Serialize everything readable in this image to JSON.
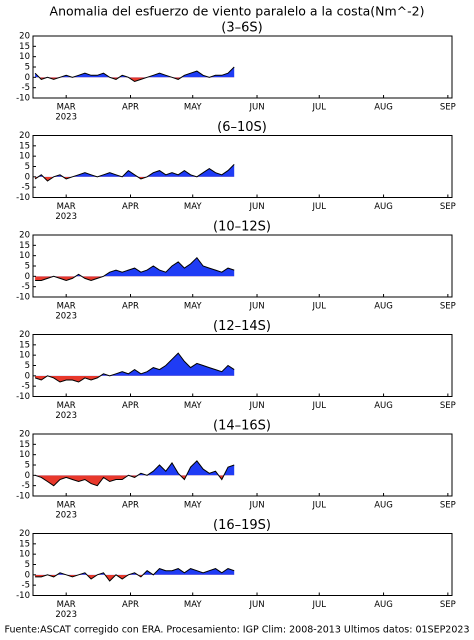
{
  "title": "Anomalia del esfuerzo de viento paralelo a la costa(Nm^-2)",
  "footer": "Fuente:ASCAT corregido con ERA. Procesamiento: IGP Clim: 2008-2013 Ultimos datos: 01SEP2023",
  "chart_data": [
    {
      "type": "area",
      "subtitle": "(3–6S)",
      "x": [
        45,
        48,
        51,
        54,
        57,
        60,
        63,
        66,
        69,
        72,
        75,
        78,
        81,
        84,
        87,
        90,
        93,
        96,
        99,
        102,
        105,
        108,
        111,
        114,
        117,
        120,
        123,
        126,
        129,
        132,
        135,
        138,
        141
      ],
      "values": [
        2,
        -1,
        0,
        -1,
        0,
        1,
        0,
        1,
        2,
        1,
        1,
        2,
        0,
        -1,
        1,
        0,
        -2,
        -1,
        0,
        1,
        2,
        1,
        0,
        -1,
        1,
        2,
        3,
        1,
        0,
        1,
        1,
        2,
        5
      ],
      "xlim": [
        44,
        246
      ],
      "xticks": [
        {
          "value": 60,
          "label": "MAR"
        },
        {
          "value": 91,
          "label": "APR"
        },
        {
          "value": 121,
          "label": "MAY"
        },
        {
          "value": 152,
          "label": "JUN"
        },
        {
          "value": 182,
          "label": "JUL"
        },
        {
          "value": 213,
          "label": "AUG"
        },
        {
          "value": 244,
          "label": "SEP"
        }
      ],
      "year_label": "2023",
      "ylim": [
        -10,
        20
      ],
      "yticks": [
        20,
        15,
        10,
        5,
        0,
        -5,
        -10
      ],
      "pos_color": "#1f3cf5",
      "neg_color": "#e8382b",
      "line_color": "#000000"
    },
    {
      "type": "area",
      "subtitle": "(6–10S)",
      "x": [
        45,
        48,
        51,
        54,
        57,
        60,
        63,
        66,
        69,
        72,
        75,
        78,
        81,
        84,
        87,
        90,
        93,
        96,
        99,
        102,
        105,
        108,
        111,
        114,
        117,
        120,
        123,
        126,
        129,
        132,
        135,
        138,
        141
      ],
      "values": [
        -1,
        1,
        -2,
        0,
        1,
        -1,
        0,
        1,
        2,
        1,
        0,
        1,
        2,
        1,
        0,
        3,
        1,
        -1,
        0,
        2,
        3,
        1,
        2,
        1,
        3,
        1,
        0,
        2,
        4,
        2,
        1,
        3,
        6
      ],
      "xlim": [
        44,
        246
      ],
      "xticks": [
        {
          "value": 60,
          "label": "MAR"
        },
        {
          "value": 91,
          "label": "APR"
        },
        {
          "value": 121,
          "label": "MAY"
        },
        {
          "value": 152,
          "label": "JUN"
        },
        {
          "value": 182,
          "label": "JUL"
        },
        {
          "value": 213,
          "label": "AUG"
        },
        {
          "value": 244,
          "label": "SEP"
        }
      ],
      "year_label": "2023",
      "ylim": [
        -10,
        20
      ],
      "yticks": [
        20,
        15,
        10,
        5,
        0,
        -5,
        -10
      ],
      "pos_color": "#1f3cf5",
      "neg_color": "#e8382b",
      "line_color": "#000000"
    },
    {
      "type": "area",
      "subtitle": "(10–12S)",
      "x": [
        45,
        48,
        51,
        54,
        57,
        60,
        63,
        66,
        69,
        72,
        75,
        78,
        81,
        84,
        87,
        90,
        93,
        96,
        99,
        102,
        105,
        108,
        111,
        114,
        117,
        120,
        123,
        126,
        129,
        132,
        135,
        138,
        141
      ],
      "values": [
        -2,
        -2,
        -1,
        0,
        -1,
        -2,
        -1,
        1,
        -1,
        -2,
        -1,
        0,
        2,
        3,
        2,
        3,
        4,
        2,
        3,
        5,
        3,
        2,
        5,
        7,
        4,
        6,
        9,
        5,
        4,
        3,
        2,
        4,
        3
      ],
      "xlim": [
        44,
        246
      ],
      "xticks": [
        {
          "value": 60,
          "label": "MAR"
        },
        {
          "value": 91,
          "label": "APR"
        },
        {
          "value": 121,
          "label": "MAY"
        },
        {
          "value": 152,
          "label": "JUN"
        },
        {
          "value": 182,
          "label": "JUL"
        },
        {
          "value": 213,
          "label": "AUG"
        },
        {
          "value": 244,
          "label": "SEP"
        }
      ],
      "year_label": "2023",
      "ylim": [
        -10,
        20
      ],
      "yticks": [
        20,
        15,
        10,
        5,
        0,
        -5,
        -10
      ],
      "pos_color": "#1f3cf5",
      "neg_color": "#e8382b",
      "line_color": "#000000"
    },
    {
      "type": "area",
      "subtitle": "(12–14S)",
      "x": [
        45,
        48,
        51,
        54,
        57,
        60,
        63,
        66,
        69,
        72,
        75,
        78,
        81,
        84,
        87,
        90,
        93,
        96,
        99,
        102,
        105,
        108,
        111,
        114,
        117,
        120,
        123,
        126,
        129,
        132,
        135,
        138,
        141
      ],
      "values": [
        -1,
        -2,
        0,
        -1,
        -3,
        -2,
        -2,
        -3,
        -1,
        -2,
        -1,
        1,
        0,
        1,
        2,
        1,
        3,
        1,
        2,
        4,
        3,
        5,
        8,
        11,
        7,
        4,
        6,
        5,
        4,
        3,
        2,
        5,
        3
      ],
      "xlim": [
        44,
        246
      ],
      "xticks": [
        {
          "value": 60,
          "label": "MAR"
        },
        {
          "value": 91,
          "label": "APR"
        },
        {
          "value": 121,
          "label": "MAY"
        },
        {
          "value": 152,
          "label": "JUN"
        },
        {
          "value": 182,
          "label": "JUL"
        },
        {
          "value": 213,
          "label": "AUG"
        },
        {
          "value": 244,
          "label": "SEP"
        }
      ],
      "year_label": "2023",
      "ylim": [
        -10,
        20
      ],
      "yticks": [
        20,
        15,
        10,
        5,
        0,
        -5,
        -10
      ],
      "pos_color": "#1f3cf5",
      "neg_color": "#e8382b",
      "line_color": "#000000"
    },
    {
      "type": "area",
      "subtitle": "(14–16S)",
      "x": [
        45,
        48,
        51,
        54,
        57,
        60,
        63,
        66,
        69,
        72,
        75,
        78,
        81,
        84,
        87,
        90,
        93,
        96,
        99,
        102,
        105,
        108,
        111,
        114,
        117,
        120,
        123,
        126,
        129,
        132,
        135,
        138,
        141
      ],
      "values": [
        0,
        -1,
        -3,
        -5,
        -2,
        -1,
        -2,
        -3,
        -2,
        -4,
        -5,
        -1,
        -3,
        -2,
        -2,
        0,
        -1,
        1,
        0,
        2,
        5,
        2,
        6,
        1,
        -2,
        4,
        7,
        3,
        1,
        2,
        -2,
        4,
        5
      ],
      "xlim": [
        44,
        246
      ],
      "xticks": [
        {
          "value": 60,
          "label": "MAR"
        },
        {
          "value": 91,
          "label": "APR"
        },
        {
          "value": 121,
          "label": "MAY"
        },
        {
          "value": 152,
          "label": "JUN"
        },
        {
          "value": 182,
          "label": "JUL"
        },
        {
          "value": 213,
          "label": "AUG"
        },
        {
          "value": 244,
          "label": "SEP"
        }
      ],
      "year_label": "2023",
      "ylim": [
        -10,
        20
      ],
      "yticks": [
        20,
        15,
        10,
        5,
        0,
        -5,
        -10
      ],
      "pos_color": "#1f3cf5",
      "neg_color": "#e8382b",
      "line_color": "#000000"
    },
    {
      "type": "area",
      "subtitle": "(16–19S)",
      "x": [
        45,
        48,
        51,
        54,
        57,
        60,
        63,
        66,
        69,
        72,
        75,
        78,
        81,
        84,
        87,
        90,
        93,
        96,
        99,
        102,
        105,
        108,
        111,
        114,
        117,
        120,
        123,
        126,
        129,
        132,
        135,
        138,
        141
      ],
      "values": [
        -1,
        -1,
        0,
        -1,
        1,
        0,
        -1,
        0,
        1,
        -2,
        0,
        1,
        -3,
        0,
        -2,
        0,
        1,
        -1,
        2,
        0,
        3,
        2,
        2,
        3,
        1,
        3,
        2,
        1,
        2,
        3,
        1,
        3,
        2
      ],
      "xlim": [
        44,
        246
      ],
      "xticks": [
        {
          "value": 60,
          "label": "MAR"
        },
        {
          "value": 91,
          "label": "APR"
        },
        {
          "value": 121,
          "label": "MAY"
        },
        {
          "value": 152,
          "label": "JUN"
        },
        {
          "value": 182,
          "label": "JUL"
        },
        {
          "value": 213,
          "label": "AUG"
        },
        {
          "value": 244,
          "label": "SEP"
        }
      ],
      "year_label": "2023",
      "ylim": [
        -10,
        20
      ],
      "yticks": [
        20,
        15,
        10,
        5,
        0,
        -5,
        -10
      ],
      "pos_color": "#1f3cf5",
      "neg_color": "#e8382b",
      "line_color": "#000000"
    }
  ]
}
